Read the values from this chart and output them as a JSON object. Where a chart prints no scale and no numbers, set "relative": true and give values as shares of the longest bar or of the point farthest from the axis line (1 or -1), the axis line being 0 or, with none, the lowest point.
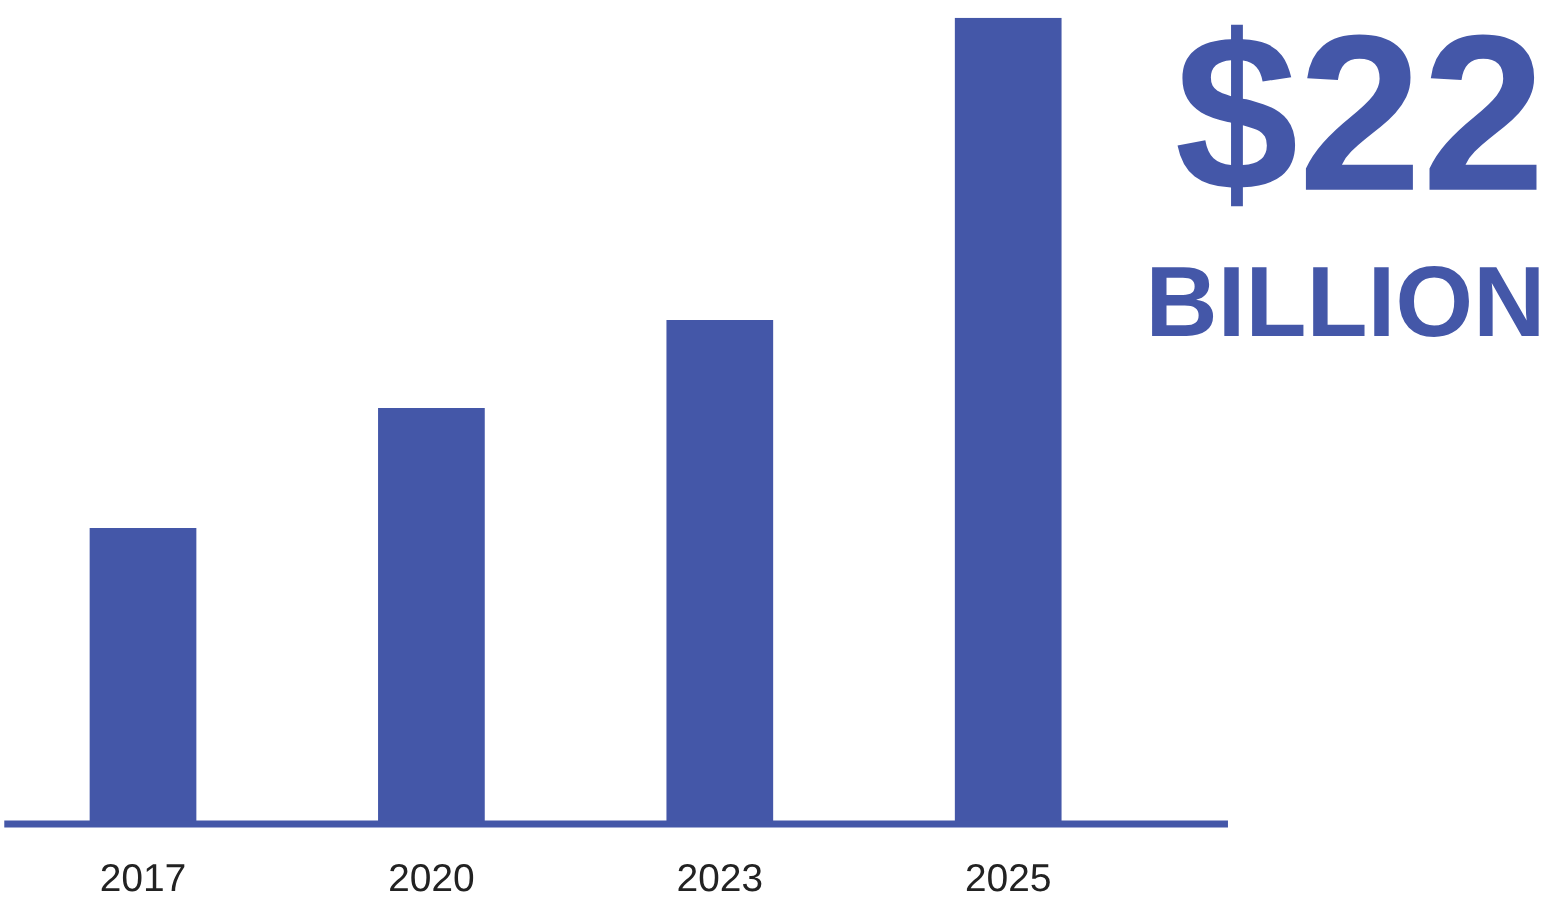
{
  "chart_data": {
    "type": "bar",
    "relative": true,
    "categories": [
      "2017",
      "2020",
      "2023",
      "2025"
    ],
    "values": [
      0.367,
      0.516,
      0.625,
      1
    ],
    "color": "#4457a8",
    "annotations": [
      "$22",
      "BILLION"
    ],
    "grid": false,
    "legend": false
  }
}
